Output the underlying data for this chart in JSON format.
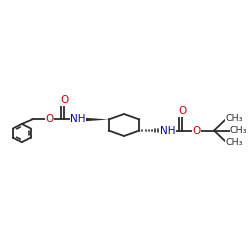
{
  "bg_color": "#ffffff",
  "bond_color": "#2c2c2c",
  "o_color": "#cc0000",
  "n_color": "#0000cc",
  "c_color": "#2c2c2c",
  "line_width": 1.3,
  "figsize": [
    2.5,
    2.5
  ],
  "dpi": 100,
  "xlim": [
    0,
    10
  ],
  "ylim": [
    2,
    8
  ]
}
